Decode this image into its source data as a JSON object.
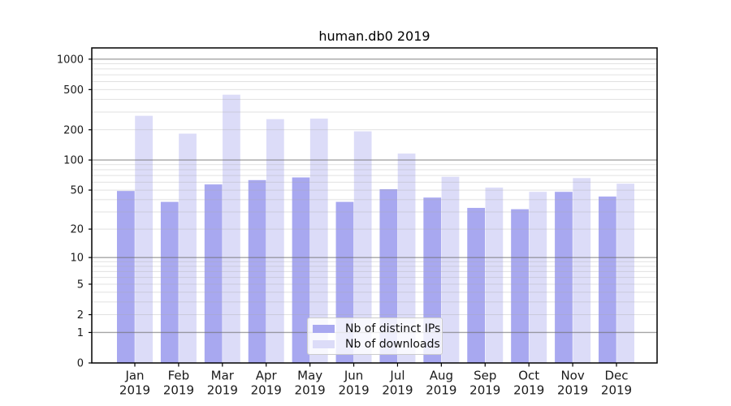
{
  "chart_data": {
    "type": "bar",
    "title": "human.db0 2019",
    "y_scale": "symlog-log1p",
    "ylim": [
      0,
      1292
    ],
    "y_ticks": [
      0,
      1,
      2,
      5,
      10,
      20,
      50,
      100,
      200,
      500,
      1000
    ],
    "grid": true,
    "legend_position": "lower center inside plot",
    "categories": [
      "Jan",
      "Feb",
      "Mar",
      "Apr",
      "May",
      "Jun",
      "Jul",
      "Aug",
      "Sep",
      "Oct",
      "Nov",
      "Dec"
    ],
    "category_year": "2019",
    "series": [
      {
        "name": "Nb of distinct IPs",
        "color": "#a8a8f0",
        "values": [
          49,
          38,
          57,
          63,
          67,
          38,
          51,
          42,
          33,
          32,
          48,
          43
        ]
      },
      {
        "name": "Nb of downloads",
        "color": "#dcdcf8",
        "values": [
          275,
          183,
          445,
          255,
          258,
          193,
          116,
          68,
          53,
          48,
          66,
          58
        ]
      }
    ],
    "colors": {
      "axis_frame": "#000000",
      "grid_major": "#a5a5a5",
      "grid_minor": "#e2e2e2",
      "legend_border": "#cccccc",
      "tick_text": "#1a1a1a"
    }
  }
}
